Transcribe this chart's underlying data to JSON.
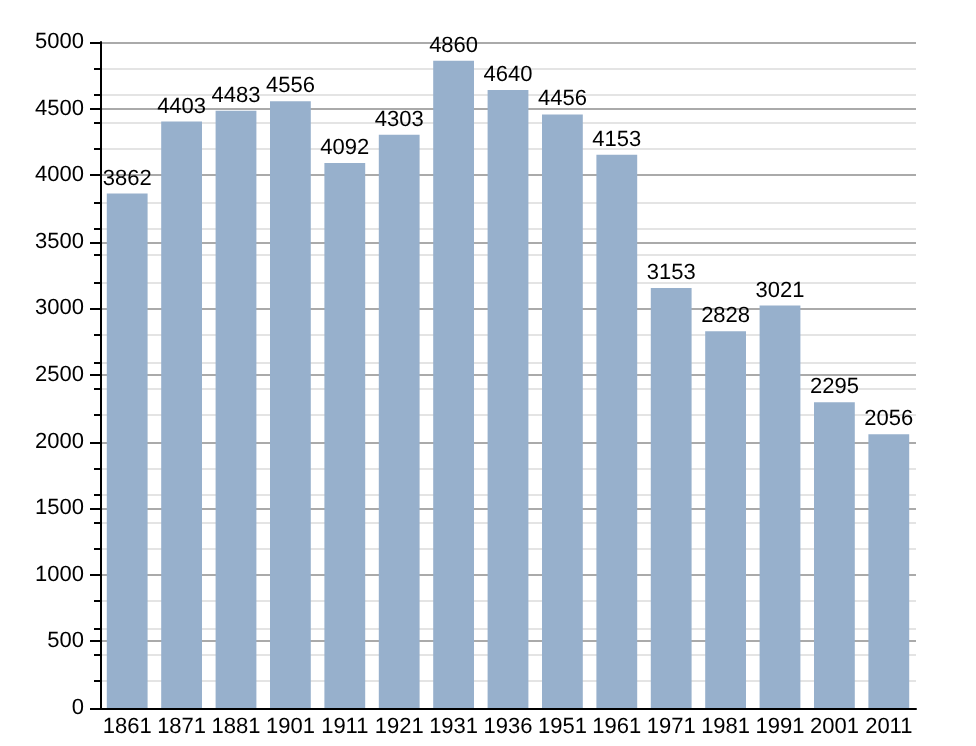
{
  "chart_data": {
    "type": "bar",
    "categories": [
      "1861",
      "1871",
      "1881",
      "1901",
      "1911",
      "1921",
      "1931",
      "1936",
      "1951",
      "1961",
      "1971",
      "1981",
      "1991",
      "2001",
      "2011"
    ],
    "values": [
      3862,
      4403,
      4483,
      4556,
      4092,
      4303,
      4860,
      4640,
      4456,
      4153,
      3153,
      2828,
      3021,
      2295,
      2056
    ],
    "color": "#97b0cc",
    "ylim": [
      0,
      5000
    ],
    "yticks": [
      0,
      500,
      1000,
      1500,
      2000,
      2500,
      3000,
      3500,
      4000,
      4500,
      5000
    ],
    "grid": "y",
    "data_labels": true
  }
}
